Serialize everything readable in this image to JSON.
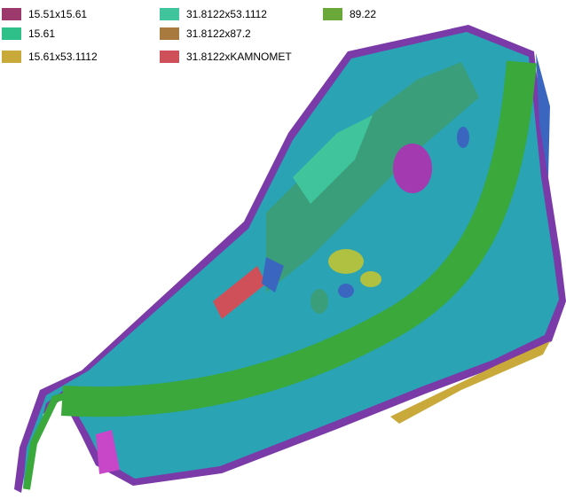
{
  "legend": [
    {
      "color": "#3a66c0"
    },
    {
      "color": "#7a3aa8"
    },
    {
      "color": "#c847c8"
    },
    {
      "label": "15.51x15.61",
      "color": "#9c3a6e"
    },
    {
      "label": "31.8122x53.1112",
      "color": "#40c49c"
    },
    {
      "label": "89.22",
      "color": "#6aa83a"
    },
    {
      "label": "15.61",
      "color": "#2fc08a"
    },
    {
      "label": "31.8122x87.2",
      "color": "#a87a3d"
    },
    {
      "label": "15.61x53.1112",
      "color": "#c9a93a"
    },
    {
      "label": "31.8122xKAMNOMET",
      "color": "#d0505a"
    }
  ]
}
